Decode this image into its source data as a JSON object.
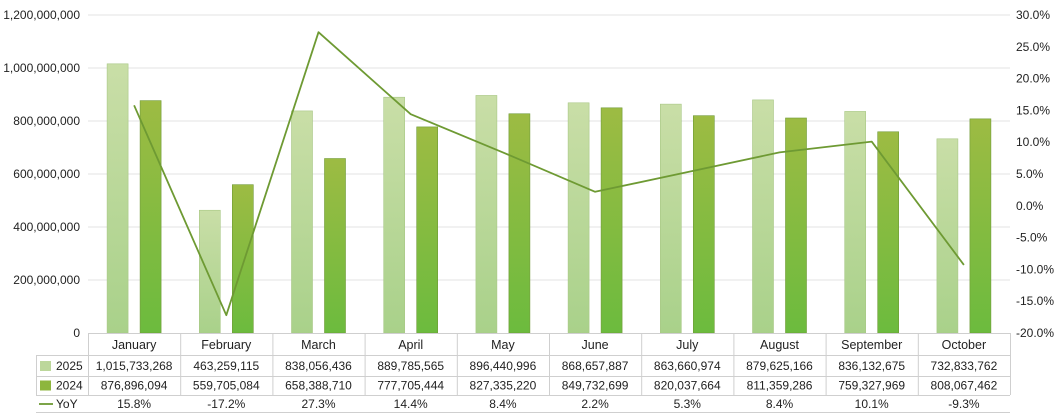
{
  "chart_data": {
    "type": "bar",
    "categories": [
      "January",
      "February",
      "March",
      "April",
      "May",
      "June",
      "July",
      "August",
      "September",
      "October"
    ],
    "series": [
      {
        "name": "2025",
        "type": "bar",
        "axis": "left",
        "color": "#b7d58f",
        "values": [
          1015733268,
          463259115,
          838056436,
          889785565,
          896440996,
          868657887,
          863660974,
          879625166,
          836132675,
          732833762
        ]
      },
      {
        "name": "2024",
        "type": "bar",
        "axis": "left",
        "color": "#7ab648",
        "values": [
          876896094,
          559705084,
          658388710,
          777705444,
          827335220,
          849732699,
          820037664,
          811359286,
          759327969,
          808067462
        ]
      },
      {
        "name": "YoY",
        "type": "line",
        "axis": "right",
        "color": "#6e9a33",
        "values": [
          15.8,
          -17.2,
          27.3,
          14.4,
          8.4,
          2.2,
          5.3,
          8.4,
          10.1,
          -9.3
        ]
      }
    ],
    "y_left": {
      "min": 0,
      "max": 1200000000,
      "step": 200000000,
      "tick_labels": [
        "0",
        "200,000,000",
        "400,000,000",
        "600,000,000",
        "800,000,000",
        "1,000,000,000",
        "1,200,000,000"
      ]
    },
    "y_right": {
      "min": -20,
      "max": 30,
      "step": 5,
      "tick_labels": [
        "-20.0%",
        "-15.0%",
        "-10.0%",
        "-5.0%",
        "0.0%",
        "5.0%",
        "10.0%",
        "15.0%",
        "20.0%",
        "25.0%",
        "30.0%"
      ]
    },
    "data_table": {
      "rows": [
        {
          "label": "2025",
          "cells": [
            "1,015,733,268",
            "463,259,115",
            "838,056,436",
            "889,785,565",
            "896,440,996",
            "868,657,887",
            "863,660,974",
            "879,625,166",
            "836,132,675",
            "732,833,762"
          ]
        },
        {
          "label": "2024",
          "cells": [
            "876,896,094",
            "559,705,084",
            "658,388,710",
            "777,705,444",
            "827,335,220",
            "849,732,699",
            "820,037,664",
            "811,359,286",
            "759,327,969",
            "808,067,462"
          ]
        },
        {
          "label": "YoY",
          "cells": [
            "15.8%",
            "-17.2%",
            "27.3%",
            "14.4%",
            "8.4%",
            "2.2%",
            "5.3%",
            "8.4%",
            "10.1%",
            "-9.3%"
          ]
        }
      ]
    },
    "grid": true
  }
}
